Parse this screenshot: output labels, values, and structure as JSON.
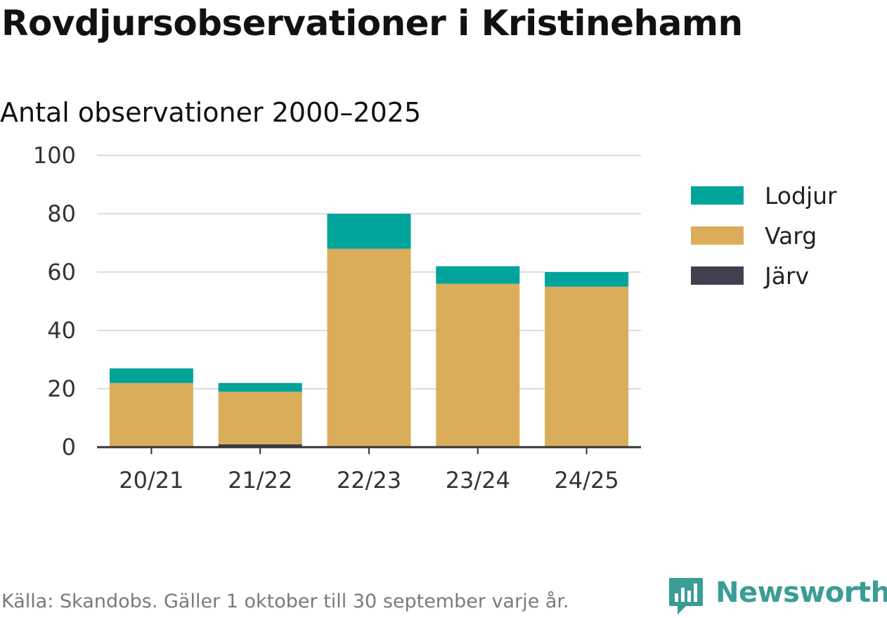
{
  "header": {
    "title": "Rovdjursobservationer i Kristinehamn",
    "subtitle": "Antal observationer 2000–2025"
  },
  "footer": {
    "source": "Källa: Skandobs. Gäller 1 oktober till 30 september varje år.",
    "brand": "Newsworthy",
    "brand_icon": "newsworthy-logo-icon",
    "brand_color": "#3a9d96"
  },
  "chart_data": {
    "type": "bar",
    "stacked": true,
    "categories": [
      "20/21",
      "21/22",
      "22/23",
      "23/24",
      "24/25"
    ],
    "series": [
      {
        "name": "Järv",
        "values": [
          0,
          1,
          0,
          0,
          0
        ],
        "color": "#404050"
      },
      {
        "name": "Varg",
        "values": [
          22,
          18,
          68,
          56,
          55
        ],
        "color": "#d9ad5a"
      },
      {
        "name": "Lodjur",
        "values": [
          5,
          3,
          12,
          6,
          5
        ],
        "color": "#00a49a"
      }
    ],
    "legend_order": [
      "Lodjur",
      "Varg",
      "Järv"
    ],
    "yticks": [
      0,
      20,
      40,
      60,
      80,
      100
    ],
    "ylim": [
      0,
      100
    ],
    "grid": true,
    "legend_position": "right",
    "title": "Rovdjursobservationer i Kristinehamn",
    "subtitle": "Antal observationer 2000–2025",
    "xlabel": "",
    "ylabel": ""
  }
}
